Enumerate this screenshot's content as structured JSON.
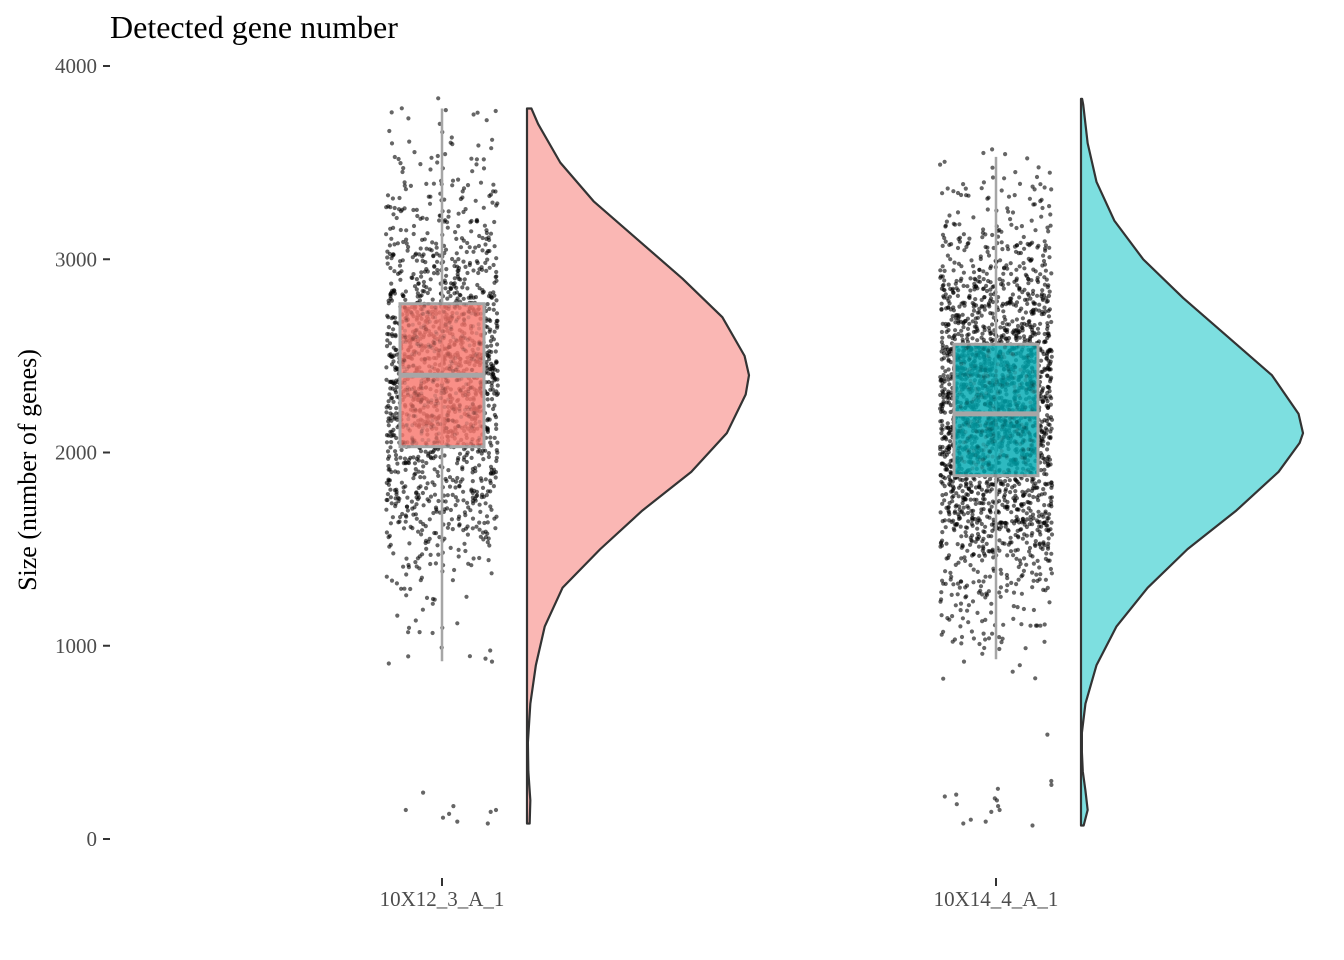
{
  "chart_data": {
    "type": "raincloud",
    "title": "Detected gene number",
    "xlabel": "",
    "ylabel": "Size (number of genes)",
    "ylim": [
      0,
      4000
    ],
    "y_ticks": [
      0,
      1000,
      2000,
      3000,
      4000
    ],
    "y_tick_labels": [
      "0",
      "1000",
      "2000",
      "3000",
      "4000"
    ],
    "grid": false,
    "legend": "none",
    "categories": [
      "10X12_3_A_1",
      "10X14_4_A_1"
    ],
    "groups": [
      {
        "name": "10X12_3_A_1",
        "color": "#f8766d",
        "density_fill": "#fab7b4",
        "box_fill": "#f8766d",
        "box": {
          "whisker_low": 920,
          "q1": 2030,
          "median": 2400,
          "q3": 2770,
          "whisker_high": 3780
        },
        "n_points": 1500,
        "outliers_low": [
          150,
          130,
          170,
          90,
          110,
          150,
          240,
          140,
          80
        ],
        "density": {
          "y": [
            80,
            200,
            350,
            500,
            700,
            900,
            1100,
            1300,
            1500,
            1700,
            1900,
            2100,
            2300,
            2400,
            2500,
            2700,
            2900,
            3100,
            3300,
            3500,
            3700,
            3780
          ],
          "d": [
            0.012,
            0.015,
            0.006,
            0.004,
            0.015,
            0.04,
            0.08,
            0.16,
            0.33,
            0.52,
            0.74,
            0.9,
            0.985,
            1.0,
            0.98,
            0.88,
            0.7,
            0.5,
            0.3,
            0.15,
            0.05,
            0.02
          ]
        }
      },
      {
        "name": "10X14_4_A_1",
        "color": "#00a9b2",
        "density_fill": "#7ddfe0",
        "box_fill": "#00a9b2",
        "box": {
          "whisker_low": 930,
          "q1": 1880,
          "median": 2200,
          "q3": 2560,
          "whisker_high": 3530
        },
        "n_points": 2200,
        "outliers_low": [
          540,
          300,
          280,
          260,
          230,
          220,
          210,
          200,
          180,
          170,
          150,
          140,
          100,
          90,
          80,
          70
        ],
        "density": {
          "y": [
            70,
            150,
            250,
            350,
            450,
            550,
            700,
            900,
            1100,
            1300,
            1500,
            1700,
            1900,
            2050,
            2100,
            2200,
            2400,
            2600,
            2800,
            3000,
            3200,
            3400,
            3600,
            3800,
            3830
          ],
          "d": [
            0.012,
            0.03,
            0.02,
            0.008,
            0.004,
            0.004,
            0.02,
            0.07,
            0.16,
            0.3,
            0.48,
            0.7,
            0.89,
            0.985,
            1.0,
            0.98,
            0.86,
            0.66,
            0.46,
            0.28,
            0.15,
            0.07,
            0.03,
            0.01,
            0.005
          ]
        }
      }
    ]
  }
}
